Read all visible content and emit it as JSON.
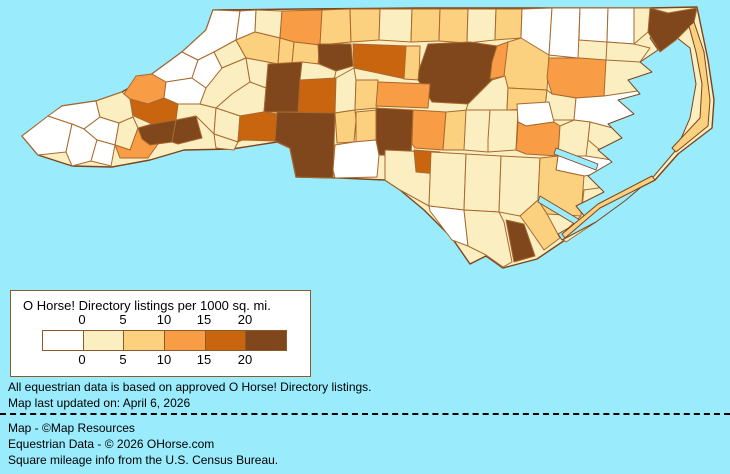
{
  "palette": {
    "water": "#9AEBFC",
    "W": "#FFFFFF",
    "C": "#FBEFC1",
    "Y": "#FBD07E",
    "O": "#F99C46",
    "D": "#CA650F",
    "B": "#80461C",
    "county_border": "#A8692E",
    "state_border": "#7C441C",
    "legend_border": "#8B5A2B",
    "text": "#000000"
  },
  "legend": {
    "title": "O Horse! Directory listings per 1000 sq. mi.",
    "tick_labels": [
      "0",
      "5",
      "10",
      "15",
      "20"
    ],
    "swatch_colors": [
      "W",
      "C",
      "Y",
      "O",
      "D",
      "B"
    ]
  },
  "notes": {
    "line1": "All equestrian data is based on approved O Horse! Directory listings.",
    "line2": "Map last updated on: April 6, 2026"
  },
  "credits": {
    "line1": "Map - ©Map Resources",
    "line2": "Equestrian Data - © 2026 OHorse.com",
    "line3": "Square mileage info from the U.S. Census Bureau."
  },
  "map": {
    "region": "North Carolina counties choropleth",
    "layers": [
      {
        "n": "state-outline",
        "f": "C",
        "s": "state_border",
        "w": 1.4,
        "p": "22,136 62,106 96,101 122,92 152,74 182,52 206,30 213,10 300,9 420,8 540,8 648,8 697,7 708,60 714,100 712,128 678,154 655,180 600,208 565,240 537,259 518,264 503,268 486,256 470,264 452,238 424,210 400,190 385,180 340,178 296,177 290,148 277,142 232,149 184,150 150,160 112,167 72,166 38,155"
      },
      {
        "n": "county",
        "f": "W",
        "s": "county_border",
        "w": 1,
        "p": "22,136 48,116 72,124 66,152 38,155"
      },
      {
        "n": "county",
        "f": "W",
        "s": "county_border",
        "w": 1,
        "p": "48,116 62,106 96,101 100,117 84,129 72,124"
      },
      {
        "n": "county",
        "f": "W",
        "s": "county_border",
        "w": 1,
        "p": "72,124 84,129 97,140 91,161 72,166 66,152"
      },
      {
        "n": "county",
        "f": "W",
        "s": "county_border",
        "w": 1,
        "p": "84,129 100,117 119,123 115,145 97,140"
      },
      {
        "n": "county",
        "f": "W",
        "s": "county_border",
        "w": 1,
        "p": "97,140 115,145 111,166 91,161"
      },
      {
        "n": "county",
        "f": "C",
        "s": "county_border",
        "w": 1,
        "p": "96,101 122,92 130,99 133,117 119,123 100,117"
      },
      {
        "n": "county",
        "f": "C",
        "s": "county_border",
        "w": 1,
        "p": "119,123 133,117 138,128 130,150 115,145"
      },
      {
        "n": "county",
        "f": "O",
        "s": "county_border",
        "w": 1,
        "p": "115,145 130,150 138,128 152,132 158,144 148,158 120,158"
      },
      {
        "n": "county",
        "f": "O",
        "s": "county_border",
        "w": 1,
        "p": "124,94 136,76 152,74 166,82 164,98 148,104 130,99"
      },
      {
        "n": "county",
        "f": "D",
        "s": "county_border",
        "w": 1,
        "p": "130,99 148,104 164,98 178,104 176,120 152,124 134,116"
      },
      {
        "n": "county",
        "f": "B",
        "s": "county_border",
        "w": 1,
        "p": "138,128 152,124 176,120 172,142 150,145 142,139"
      },
      {
        "n": "county",
        "f": "B",
        "s": "county_border",
        "w": 1,
        "p": "176,120 196,116 202,138 178,144 172,142"
      },
      {
        "n": "county",
        "f": "W",
        "s": "county_border",
        "w": 1,
        "p": "152,74 182,52 198,60 192,78 166,82"
      },
      {
        "n": "county",
        "f": "W",
        "s": "county_border",
        "w": 1,
        "p": "166,82 192,78 206,88 200,104 178,104 164,98"
      },
      {
        "n": "county",
        "f": "C",
        "s": "county_border",
        "w": 1,
        "p": "178,104 200,104 216,108 214,134 196,116 176,120"
      },
      {
        "n": "county",
        "f": "W",
        "s": "county_border",
        "w": 1,
        "p": "182,52 206,30 213,10 240,11 236,40 214,52 198,60"
      },
      {
        "n": "county",
        "f": "W",
        "s": "county_border",
        "w": 1,
        "p": "198,60 214,52 222,68 206,88 192,78"
      },
      {
        "n": "county",
        "f": "C",
        "s": "county_border",
        "w": 1,
        "p": "214,52 236,40 246,58 222,68"
      },
      {
        "n": "county",
        "f": "C",
        "s": "county_border",
        "w": 1,
        "p": "206,88 222,68 246,58 250,82 232,94 216,108 200,104"
      },
      {
        "n": "county",
        "f": "W",
        "s": "county_border",
        "w": 1,
        "p": "240,11 256,10 255,32 236,40"
      },
      {
        "n": "county",
        "f": "C",
        "s": "county_border",
        "w": 1,
        "p": "256,10 282,11 280,38 255,32"
      },
      {
        "n": "county",
        "f": "O",
        "s": "county_border",
        "w": 1,
        "p": "282,11 322,10 320,45 294,42 280,38"
      },
      {
        "n": "county",
        "f": "Y",
        "s": "county_border",
        "w": 1,
        "p": "322,10 350,9 351,42 320,45"
      },
      {
        "n": "county",
        "f": "Y",
        "s": "county_border",
        "w": 1,
        "p": "350,9 380,9 379,40 351,42"
      },
      {
        "n": "county",
        "f": "C",
        "s": "county_border",
        "w": 1,
        "p": "380,9 412,9 411,42 379,40"
      },
      {
        "n": "county",
        "f": "Y",
        "s": "county_border",
        "w": 1,
        "p": "412,9 440,9 439,41 411,42"
      },
      {
        "n": "county",
        "f": "Y",
        "s": "county_border",
        "w": 1,
        "p": "440,9 468,9 467,43 439,41"
      },
      {
        "n": "county",
        "f": "C",
        "s": "county_border",
        "w": 1,
        "p": "468,9 496,9 495,40 467,43"
      },
      {
        "n": "county",
        "f": "Y",
        "s": "county_border",
        "w": 1,
        "p": "496,9 522,9 521,38 495,40"
      },
      {
        "n": "county",
        "f": "W",
        "s": "county_border",
        "w": 1,
        "p": "522,9 552,8 549,55 520,55 521,38"
      },
      {
        "n": "county",
        "f": "W",
        "s": "county_border",
        "w": 1,
        "p": "552,8 580,8 578,58 549,55"
      },
      {
        "n": "county",
        "f": "W",
        "s": "county_border",
        "w": 1,
        "p": "580,8 608,8 607,42 579,40"
      },
      {
        "n": "county",
        "f": "W",
        "s": "county_border",
        "w": 1,
        "p": "608,8 634,8 634,44 607,42"
      },
      {
        "n": "county",
        "f": "C",
        "s": "county_border",
        "w": 1,
        "p": "634,8 650,8 655,20 648,32 634,44"
      },
      {
        "n": "county",
        "f": "Y",
        "s": "county_border",
        "w": 1,
        "p": "236,40 255,32 280,38 278,64 246,58"
      },
      {
        "n": "county",
        "f": "Y",
        "s": "county_border",
        "w": 1,
        "p": "280,38 294,42 292,64 278,64"
      },
      {
        "n": "county",
        "f": "Y",
        "s": "county_border",
        "w": 1,
        "p": "294,42 320,45 318,64 292,64"
      },
      {
        "n": "county",
        "f": "B",
        "s": "county_border",
        "w": 1,
        "p": "318,44 351,44 353,66 336,71 319,64"
      },
      {
        "n": "county",
        "f": "D",
        "s": "county_border",
        "w": 1,
        "p": "353,44 408,46 406,79 354,68"
      },
      {
        "n": "county",
        "f": "Y",
        "s": "county_border",
        "w": 1,
        "p": "406,46 420,46 419,80 404,79"
      },
      {
        "n": "county",
        "f": "B",
        "s": "county_border",
        "w": 1,
        "p": "428,44 470,42 497,46 492,80 468,104 432,102 418,80 419,70"
      },
      {
        "n": "county",
        "f": "O",
        "s": "county_border",
        "w": 1,
        "p": "497,46 508,42 505,76 490,79 492,62"
      },
      {
        "n": "county",
        "f": "Y",
        "s": "county_border",
        "w": 1,
        "p": "508,42 521,38 549,55 547,90 508,88 504,76"
      },
      {
        "n": "county",
        "f": "O",
        "s": "county_border",
        "w": 1,
        "p": "549,58 580,58 606,60 604,96 576,98 552,94 547,78"
      },
      {
        "n": "county",
        "f": "C",
        "s": "county_border",
        "w": 1,
        "p": "607,42 634,44 650,48 640,62 606,60"
      },
      {
        "n": "county",
        "f": "C",
        "s": "county_border",
        "w": 1,
        "p": "246,58 278,64 266,88 250,82"
      },
      {
        "n": "county",
        "f": "C",
        "s": "county_border",
        "w": 1,
        "p": "232,94 250,82 266,88 264,112 240,116 216,108"
      },
      {
        "n": "county",
        "f": "B",
        "s": "county_border",
        "w": 1,
        "p": "268,64 302,62 300,112 264,112 266,88"
      },
      {
        "n": "county",
        "f": "C",
        "s": "county_border",
        "w": 1,
        "p": "302,62 319,64 336,71 334,80 300,80"
      },
      {
        "n": "county",
        "f": "D",
        "s": "county_border",
        "w": 1,
        "p": "300,80 336,78 335,113 298,112"
      },
      {
        "n": "county",
        "f": "C",
        "s": "county_border",
        "w": 1,
        "p": "336,78 354,68 356,80 355,110 335,113"
      },
      {
        "n": "county",
        "f": "Y",
        "s": "county_border",
        "w": 1,
        "p": "356,80 378,80 377,108 355,110"
      },
      {
        "n": "county",
        "f": "O",
        "s": "county_border",
        "w": 1,
        "p": "378,82 430,84 428,108 376,106"
      },
      {
        "n": "county",
        "f": "C",
        "s": "county_border",
        "w": 1,
        "p": "492,80 505,76 508,88 507,110 466,110 468,104"
      },
      {
        "n": "county",
        "f": "Y",
        "s": "county_border",
        "w": 1,
        "p": "508,88 547,90 545,108 507,110"
      },
      {
        "n": "county",
        "f": "C",
        "s": "county_border",
        "w": 1,
        "p": "547,90 552,94 576,98 574,120 546,120 545,108"
      },
      {
        "n": "county",
        "f": "W",
        "s": "county_border",
        "w": 1,
        "p": "576,98 604,96 644,90 650,112 648,140 620,130 590,122 574,120"
      },
      {
        "n": "county",
        "f": "C",
        "s": "county_border",
        "w": 1,
        "p": "216,108 240,116 238,142 214,134"
      },
      {
        "n": "county",
        "f": "D",
        "s": "county_border",
        "w": 1,
        "p": "240,116 264,112 277,114 275,141 242,140 238,142"
      },
      {
        "n": "county",
        "f": "B",
        "s": "county_border",
        "w": 1,
        "p": "277,112 335,113 333,178 296,177 290,148 277,142 275,141"
      },
      {
        "n": "county",
        "f": "Y",
        "s": "county_border",
        "w": 1,
        "p": "335,113 355,110 356,120 354,142 337,143"
      },
      {
        "n": "county",
        "f": "Y",
        "s": "county_border",
        "w": 1,
        "p": "356,112 377,110 376,140 356,142"
      },
      {
        "n": "county",
        "f": "B",
        "s": "county_border",
        "w": 1,
        "p": "376,108 413,110 411,156 379,155 376,140"
      },
      {
        "n": "county",
        "f": "O",
        "s": "county_border",
        "w": 1,
        "p": "413,110 446,112 443,150 415,148 412,144"
      },
      {
        "n": "county",
        "f": "Y",
        "s": "county_border",
        "w": 1,
        "p": "446,112 468,110 466,150 443,150"
      },
      {
        "n": "county",
        "f": "C",
        "s": "county_border",
        "w": 1,
        "p": "466,110 490,110 488,152 464,150"
      },
      {
        "n": "county",
        "f": "C",
        "s": "county_border",
        "w": 1,
        "p": "490,110 518,110 516,150 488,152 488,140"
      },
      {
        "n": "county",
        "f": "W",
        "s": "county_border",
        "w": 1,
        "p": "517,104 549,102 554,122 526,126 518,122"
      },
      {
        "n": "county",
        "f": "O",
        "s": "county_border",
        "w": 1,
        "p": "517,140 518,122 526,126 554,122 560,126 558,156 526,154 516,150"
      },
      {
        "n": "county",
        "f": "C",
        "s": "county_border",
        "w": 1,
        "p": "560,126 574,120 590,122 588,140 586,156 558,156"
      },
      {
        "n": "county",
        "f": "C",
        "s": "county_border",
        "w": 1,
        "p": "590,122 620,130 648,140 646,158 612,160 588,140"
      },
      {
        "n": "county",
        "f": "W",
        "s": "county_border",
        "w": 1,
        "p": "558,156 586,156 612,160 610,172 584,176 556,170"
      },
      {
        "n": "county",
        "f": "C",
        "s": "county_border",
        "w": 1,
        "p": "214,134 238,142 234,150 216,148"
      },
      {
        "n": "county",
        "f": "W",
        "s": "county_border",
        "w": 1,
        "p": "335,145 354,142 376,140 379,155 377,177 335,178 333,170"
      },
      {
        "n": "county",
        "f": "C",
        "s": "county_border",
        "w": 1,
        "p": "385,150 431,152 429,206 400,190 385,180"
      },
      {
        "n": "county",
        "f": "D",
        "s": "county_border",
        "w": 1,
        "p": "414,150 440,152 438,174 416,172"
      },
      {
        "n": "county",
        "f": "C",
        "s": "county_border",
        "w": 1,
        "p": "431,152 466,154 464,210 429,206"
      },
      {
        "n": "county",
        "f": "C",
        "s": "county_border",
        "w": 1,
        "p": "466,154 501,156 499,212 464,210"
      },
      {
        "n": "county",
        "f": "C",
        "s": "county_border",
        "w": 1,
        "p": "501,156 540,158 538,200 520,216 499,212"
      },
      {
        "n": "county",
        "f": "Y",
        "s": "county_border",
        "w": 1,
        "p": "540,158 558,156 556,170 584,176 581,216 547,214 538,200"
      },
      {
        "n": "county",
        "f": "C",
        "s": "county_border",
        "w": 1,
        "p": "581,216 584,190 612,186 618,196 596,222 566,242 560,236"
      },
      {
        "n": "county",
        "f": "W",
        "s": "county_border",
        "w": 1,
        "p": "429,206 464,210 468,246 452,240 430,211"
      },
      {
        "n": "county",
        "f": "C",
        "s": "county_border",
        "w": 1,
        "p": "464,210 499,212 504,222 512,262 503,267 486,255 468,246"
      },
      {
        "n": "county",
        "f": "Y",
        "s": "county_border",
        "w": 1,
        "p": "520,216 538,200 547,214 560,238 544,250 526,224"
      },
      {
        "n": "county",
        "f": "B",
        "s": "county_border",
        "w": 1,
        "p": "506,220 524,224 535,256 514,262"
      },
      {
        "n": "sound-water",
        "f": "water",
        "s": "state_border",
        "w": 1,
        "p": "662,26 690,48 696,84 690,118 676,150 654,176 626,200 596,222 562,240 558,234 586,218 576,206 604,192 588,176 612,162 598,150 622,138 608,124 634,114 618,100 640,94 628,80 652,72 640,62 658,50 650,38"
      },
      {
        "n": "river-water",
        "f": "water",
        "s": "state_border",
        "w": 0.8,
        "p": "540,196 580,220 578,226 538,202"
      },
      {
        "n": "river-water",
        "f": "water",
        "s": "state_border",
        "w": 0.8,
        "p": "556,148 598,164 596,170 554,154"
      },
      {
        "n": "county-currituck",
        "f": "B",
        "s": "county_border",
        "w": 1,
        "p": "650,8 668,13 697,8 694,22 676,40 660,52 648,32"
      },
      {
        "n": "outer-banks",
        "f": "Y",
        "s": "state_border",
        "w": 1,
        "p": "694,22 704,52 710,100 708,126 676,152 672,148 700,118 702,84 696,52 689,26"
      },
      {
        "n": "outer-banks",
        "f": "Y",
        "s": "state_border",
        "w": 1,
        "p": "655,180 600,208 565,238 562,234 598,204 652,176"
      }
    ]
  }
}
